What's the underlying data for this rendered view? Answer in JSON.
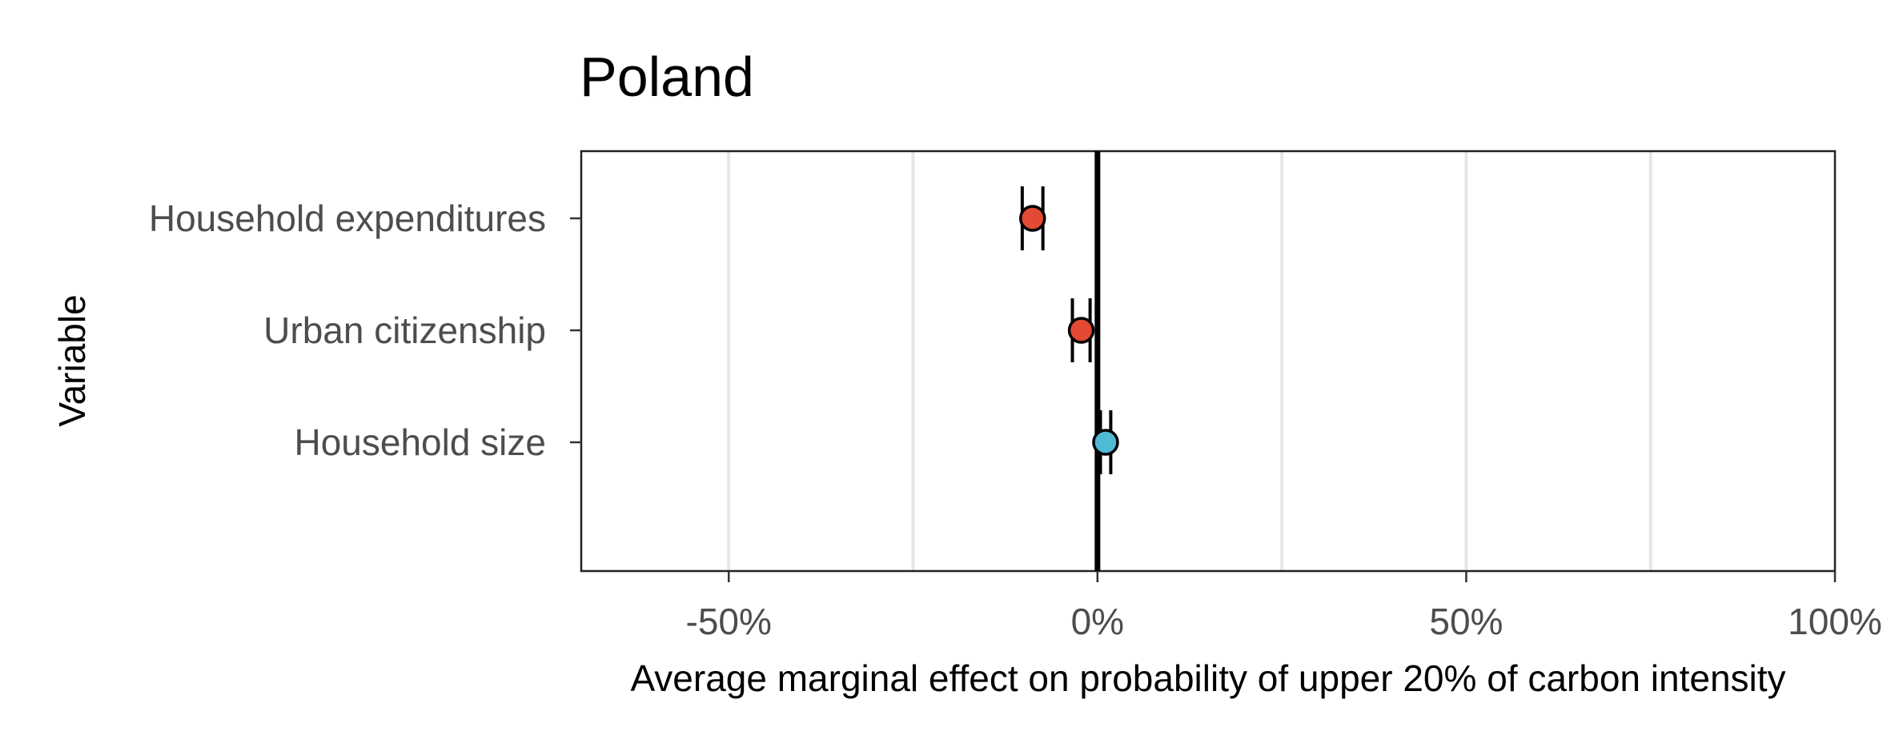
{
  "chart_data": {
    "type": "scatter",
    "title": "Poland",
    "xlabel": "Average marginal effect on probability of upper 20% of carbon intensity",
    "ylabel": "Variable",
    "xlim": [
      -0.7,
      1.0
    ],
    "x_ticks": [
      {
        "value": -0.5,
        "label": "-50%"
      },
      {
        "value": 0.0,
        "label": "0%"
      },
      {
        "value": 0.5,
        "label": "50%"
      },
      {
        "value": 1.0,
        "label": "100%"
      }
    ],
    "x_minor_gridlines": [
      -0.25,
      0.25,
      0.75
    ],
    "reference_line_x": 0.0,
    "grid": true,
    "legend": "none",
    "categories": [
      "Household expenditures",
      "Urban citizenship",
      "Household size"
    ],
    "points": [
      {
        "category": "Household expenditures",
        "estimate": -0.088,
        "ci_low": -0.102,
        "ci_high": -0.074,
        "color": "#e24a33"
      },
      {
        "category": "Urban citizenship",
        "estimate": -0.022,
        "ci_low": -0.034,
        "ci_high": -0.01,
        "color": "#e24a33"
      },
      {
        "category": "Household size",
        "estimate": 0.011,
        "ci_low": 0.004,
        "ci_high": 0.018,
        "color": "#4fb9d6"
      }
    ]
  }
}
